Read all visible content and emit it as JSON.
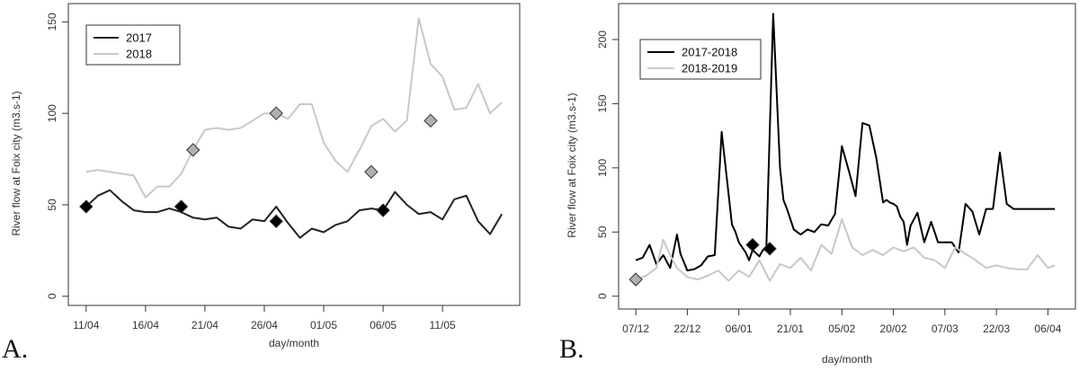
{
  "panels": [
    {
      "letter": "A."
    },
    {
      "letter": "B."
    }
  ],
  "chart_data": [
    {
      "type": "line",
      "title": "",
      "xlabel": "day/month",
      "ylabel": "River flow at Foix city (m3.s-1)",
      "x_tick_labels": [
        "11/04",
        "16/04",
        "21/04",
        "26/04",
        "01/05",
        "06/05",
        "11/05"
      ],
      "x_tick_positions": [
        0,
        5,
        10,
        15,
        20,
        25,
        30
      ],
      "xlim": [
        -1.5,
        36.5
      ],
      "y_ticks": [
        0,
        50,
        100,
        150
      ],
      "ylim": [
        -5,
        160
      ],
      "legend_position": "top-left",
      "series": [
        {
          "name": "2017",
          "color": "#222222",
          "values": [
            49,
            55,
            58,
            52,
            47,
            46,
            46,
            48,
            46,
            43,
            42,
            43,
            38,
            37,
            42,
            41,
            49,
            40,
            32,
            37,
            35,
            39,
            41,
            47,
            48,
            47,
            57,
            50,
            45,
            46,
            42,
            53,
            55,
            41,
            34,
            45
          ],
          "markers": [
            {
              "x": 0,
              "y": 49
            },
            {
              "x": 8,
              "y": 49
            },
            {
              "x": 16,
              "y": 41
            },
            {
              "x": 25,
              "y": 47
            }
          ],
          "marker_color": "#000000"
        },
        {
          "name": "2018",
          "color": "#c8c8c8",
          "values": [
            68,
            69,
            68,
            67,
            66,
            54,
            60,
            60,
            67,
            80,
            91,
            92,
            91,
            92,
            96,
            100,
            100,
            97,
            105,
            105,
            84,
            74,
            68,
            80,
            93,
            97,
            90,
            96,
            152,
            127,
            120,
            102,
            103,
            116,
            100,
            106
          ],
          "markers": [
            {
              "x": 9,
              "y": 80
            },
            {
              "x": 16,
              "y": 100
            },
            {
              "x": 24,
              "y": 68
            },
            {
              "x": 29,
              "y": 96
            }
          ],
          "marker_color": "#b0b0b0"
        }
      ]
    },
    {
      "type": "line",
      "title": "",
      "xlabel": "day/month",
      "ylabel": "River flow at Foix city (m3.s-1)",
      "x_tick_labels": [
        "07/12",
        "22/12",
        "06/01",
        "21/01",
        "05/02",
        "20/02",
        "07/03",
        "22/03",
        "06/04"
      ],
      "x_tick_positions": [
        0,
        15,
        30,
        45,
        60,
        75,
        90,
        105,
        120
      ],
      "xlim": [
        -5,
        128
      ],
      "y_ticks": [
        0,
        50,
        100,
        150,
        200
      ],
      "ylim": [
        -10,
        228
      ],
      "legend_position": "top-left",
      "series": [
        {
          "name": "2017-2018",
          "color": "#000000",
          "x": [
            0,
            2,
            4,
            6,
            8,
            10,
            12,
            13,
            15,
            17,
            19,
            21,
            23,
            25,
            27,
            28,
            29,
            30,
            31,
            32,
            33,
            34,
            36,
            37,
            38,
            40,
            42,
            43,
            44,
            45,
            46,
            47,
            48,
            50,
            52,
            54,
            56,
            58,
            60,
            62,
            64,
            66,
            68,
            70,
            72,
            73,
            74,
            75,
            76,
            77,
            78,
            79,
            80,
            82,
            84,
            86,
            88,
            90,
            92,
            94,
            96,
            98,
            100,
            102,
            104,
            106,
            108,
            110,
            112,
            114,
            116,
            118,
            119,
            120,
            121,
            122
          ],
          "values": [
            28,
            30,
            40,
            25,
            32,
            22,
            48,
            33,
            20,
            21,
            24,
            31,
            32,
            128,
            80,
            56,
            50,
            42,
            38,
            34,
            28,
            36,
            31,
            36,
            36,
            220,
            100,
            75,
            68,
            60,
            52,
            50,
            48,
            52,
            50,
            56,
            55,
            64,
            117,
            98,
            78,
            135,
            133,
            108,
            73,
            75,
            73,
            72,
            70,
            62,
            58,
            40,
            55,
            65,
            42,
            58,
            42,
            42,
            42,
            34,
            72,
            66,
            48,
            68,
            68,
            112,
            72,
            68,
            68,
            68,
            68,
            68,
            68,
            68,
            68,
            68
          ],
          "markers": [
            {
              "x": 34,
              "y": 40
            },
            {
              "x": 39,
              "y": 37
            }
          ],
          "marker_color": "#000000"
        },
        {
          "name": "2018-2019",
          "color": "#c8c8c8",
          "x": [
            0,
            3,
            6,
            8,
            10,
            12,
            15,
            18,
            21,
            24,
            27,
            30,
            33,
            36,
            39,
            42,
            45,
            48,
            51,
            54,
            57,
            60,
            63,
            66,
            69,
            72,
            75,
            78,
            81,
            84,
            87,
            90,
            93,
            96,
            99,
            102,
            105,
            108,
            111,
            114,
            117,
            120,
            122
          ],
          "values": [
            13,
            16,
            22,
            44,
            32,
            22,
            15,
            13,
            16,
            20,
            12,
            20,
            15,
            28,
            12,
            25,
            22,
            30,
            20,
            40,
            33,
            60,
            38,
            32,
            36,
            32,
            38,
            35,
            38,
            30,
            28,
            22,
            38,
            33,
            28,
            22,
            24,
            22,
            21,
            21,
            32,
            22,
            24
          ],
          "markers": [
            {
              "x": 0,
              "y": 13
            }
          ],
          "marker_color": "#b0b0b0"
        }
      ]
    }
  ]
}
